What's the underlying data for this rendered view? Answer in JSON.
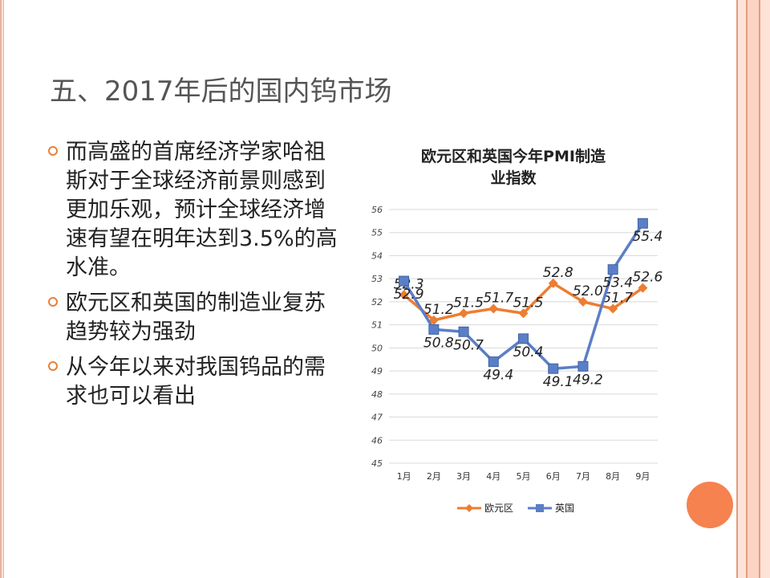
{
  "slide": {
    "title": "五、2017年后的国内钨市场",
    "bullets": [
      "而高盛的首席经济学家哈祖斯对于全球经济前景则感到更加乐观，预计全球经济增速有望在明年达到3.5%的高水准。",
      "欧元区和英国的制造业复苏趋势较为强劲",
      "从今年以来对我国钨品的需求也可以看出"
    ],
    "accent_color": "#e8803a"
  },
  "chart_data": {
    "type": "line",
    "title": "欧元区和英国今年PMI制造业指数",
    "title_lines": [
      "欧元区和英国今年PMI制造",
      "业指数"
    ],
    "categories": [
      "1月",
      "2月",
      "3月",
      "4月",
      "5月",
      "6月",
      "7月",
      "8月",
      "9月"
    ],
    "series": [
      {
        "name": "欧元区",
        "color": "#ed7d31",
        "marker": "diamond",
        "values": [
          52.3,
          51.2,
          51.5,
          51.7,
          51.5,
          52.8,
          52.0,
          51.7,
          52.6
        ]
      },
      {
        "name": "英国",
        "color": "#5b7fc6",
        "marker": "square",
        "values": [
          52.9,
          50.8,
          50.7,
          49.4,
          50.4,
          49.1,
          49.2,
          53.4,
          55.4
        ]
      }
    ],
    "ylim": [
      45,
      56
    ],
    "yticks": [
      45,
      46,
      47,
      48,
      49,
      50,
      51,
      52,
      53,
      54,
      55,
      56
    ],
    "grid": true,
    "legend": "bottom"
  }
}
